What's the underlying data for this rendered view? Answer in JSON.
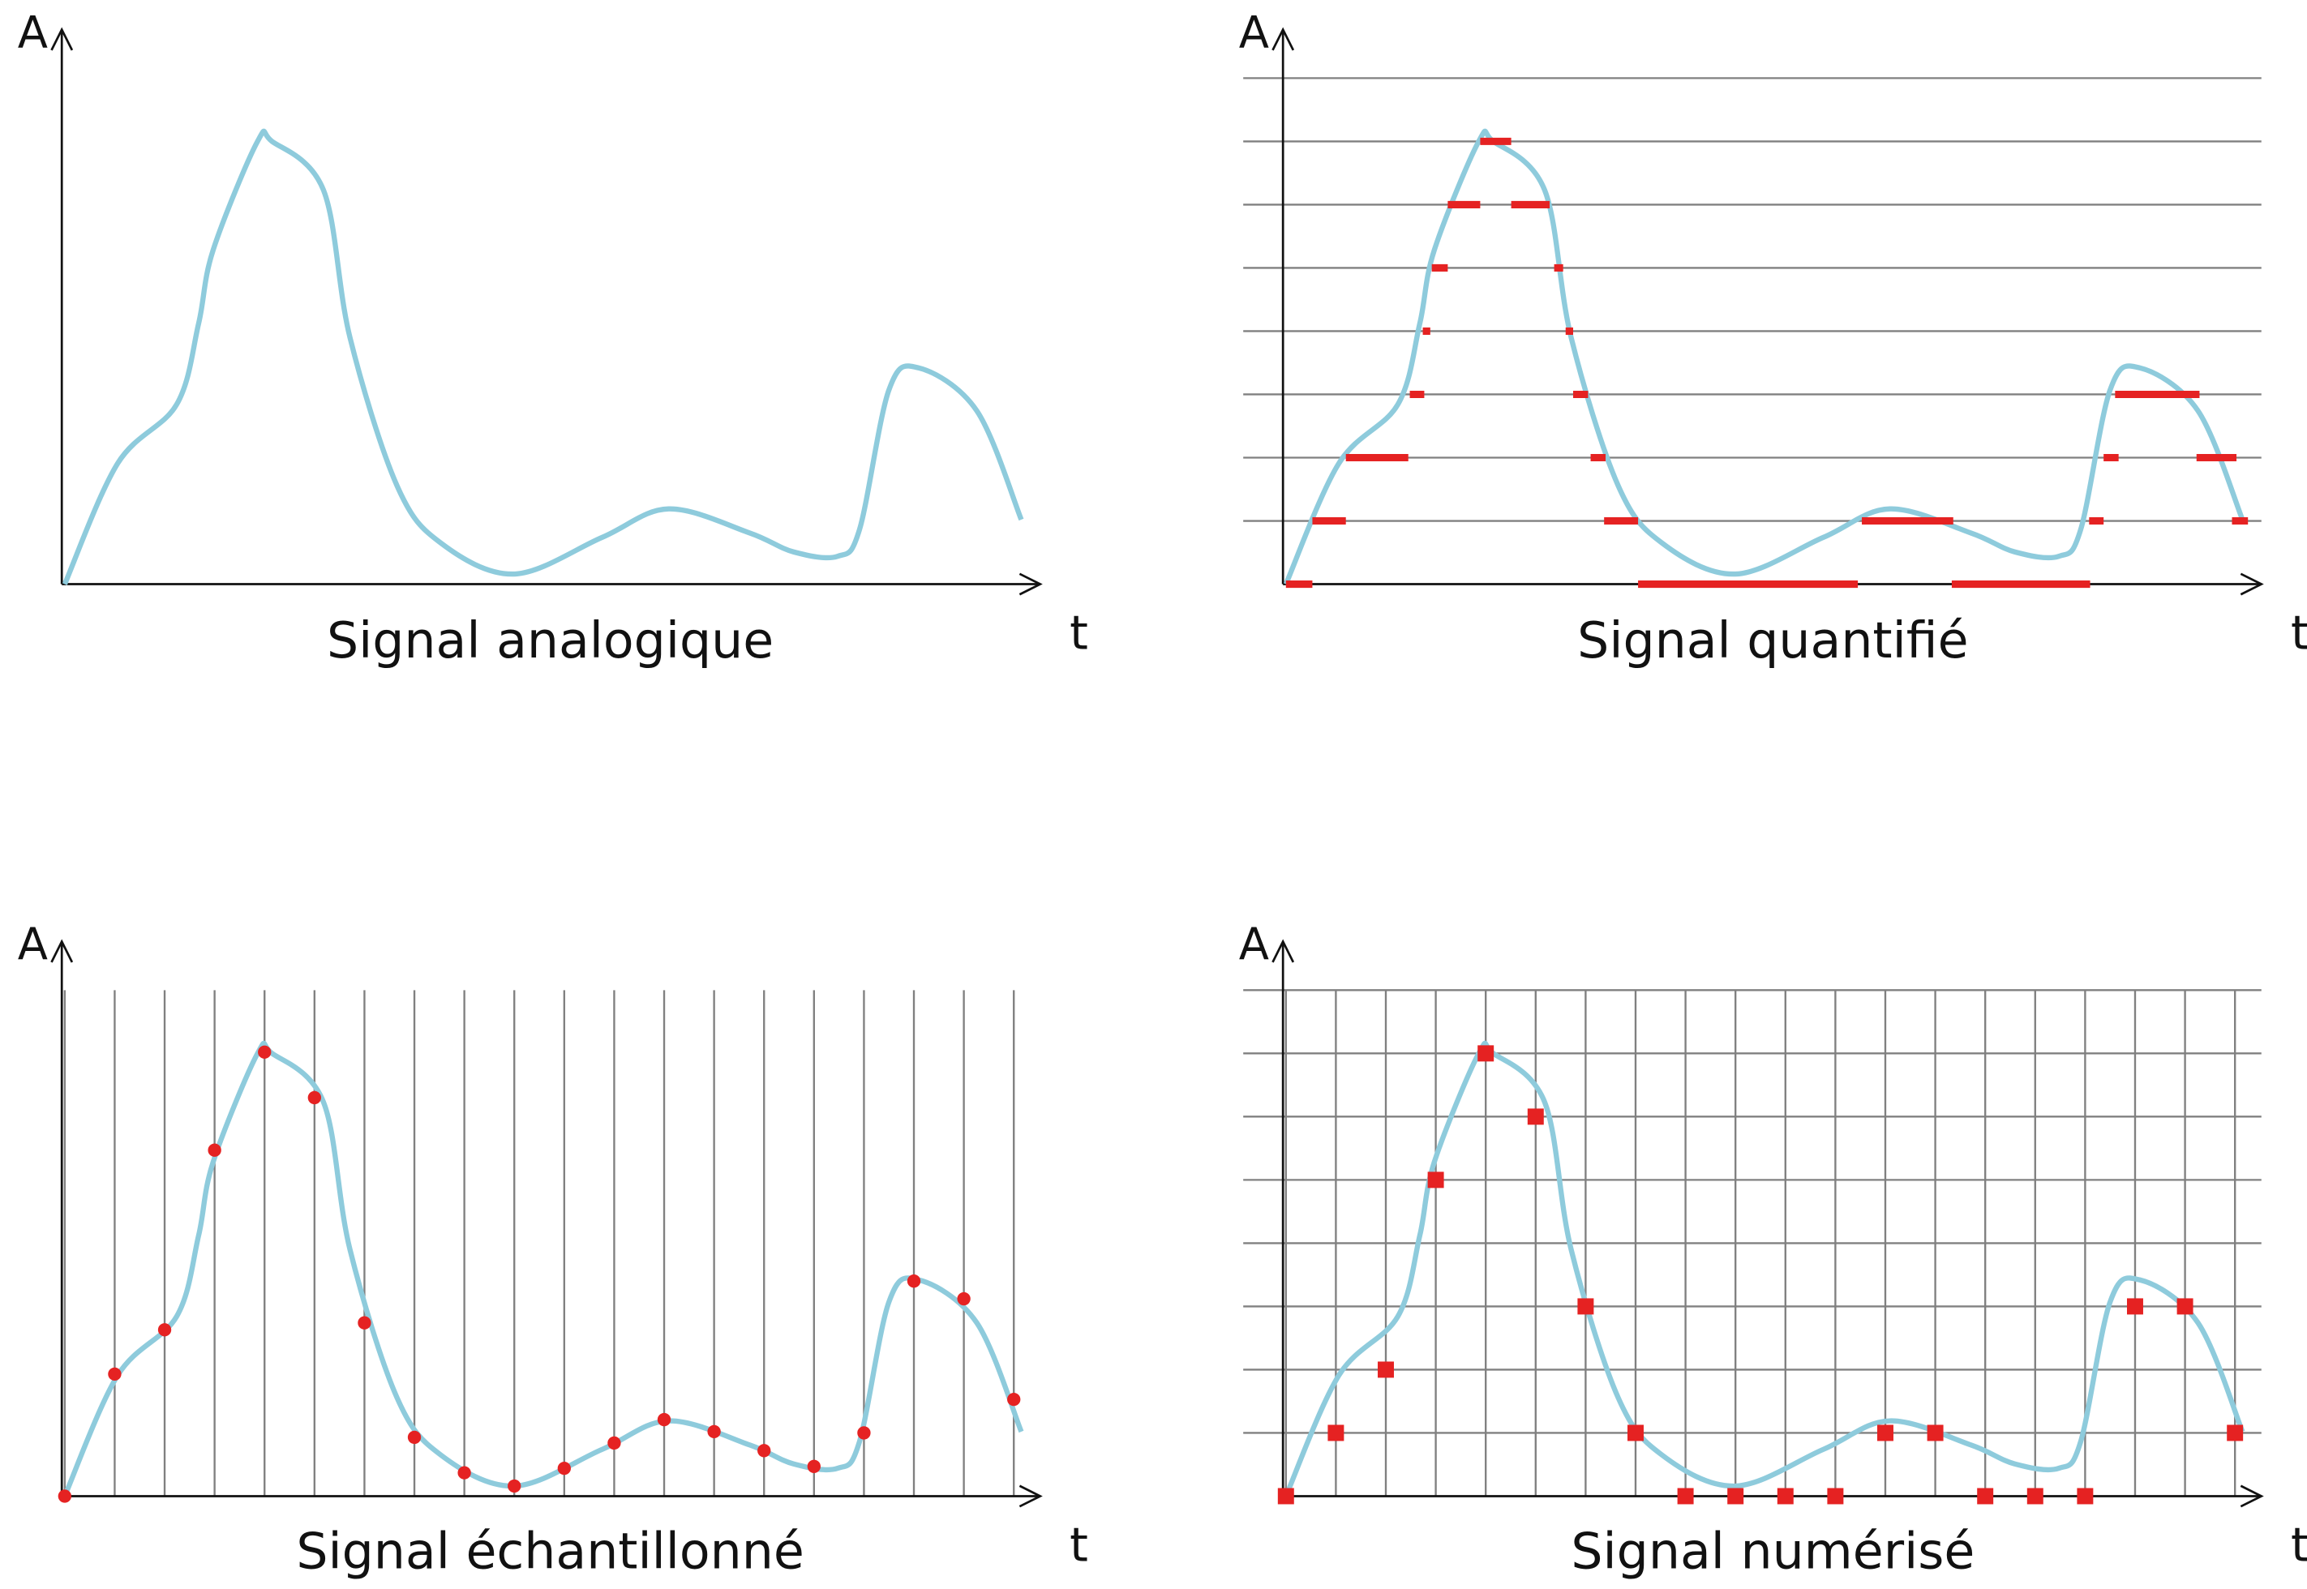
{
  "colors": {
    "signal": "#8ecbdc",
    "marker": "#e52222",
    "grid": "#808080",
    "axis": "#111111"
  },
  "axis_labels": {
    "y": "A",
    "x": "t"
  },
  "chart_data": {
    "type": "line",
    "signal_curve": [
      [
        0,
        0
      ],
      [
        1.06,
        1.91
      ],
      [
        2.24,
        2.84
      ],
      [
        2.68,
        4.12
      ],
      [
        2.97,
        5.28
      ],
      [
        3.86,
        7.0
      ],
      [
        4.15,
        7.0
      ],
      [
        5.18,
        6.23
      ],
      [
        5.71,
        3.9
      ],
      [
        6.65,
        1.56
      ],
      [
        7.53,
        0.65
      ],
      [
        9.0,
        0.16
      ],
      [
        10.76,
        0.74
      ],
      [
        12.09,
        1.19
      ],
      [
        13.71,
        0.81
      ],
      [
        14.59,
        0.51
      ],
      [
        15.47,
        0.44
      ],
      [
        15.91,
        0.86
      ],
      [
        16.5,
        3.07
      ],
      [
        17.09,
        3.42
      ],
      [
        18.26,
        2.74
      ],
      [
        19.15,
        1.02
      ]
    ],
    "samples": [
      0,
      1.93,
      2.63,
      5.47,
      7.02,
      6.3,
      2.74,
      0.93,
      0.37,
      0.16,
      0.44,
      0.84,
      1.21,
      1.02,
      0.72,
      0.47,
      1.0,
      3.4,
      3.12,
      1.53
    ],
    "digitized": [
      0,
      1,
      2,
      5,
      7,
      6,
      3,
      1,
      0,
      0,
      0,
      0,
      1,
      1,
      0,
      0,
      0,
      3,
      3,
      1
    ],
    "quantized_segments": [
      [
        0,
        0.53,
        0
      ],
      [
        7.05,
        11.45,
        0
      ],
      [
        13.33,
        16.1,
        0
      ],
      [
        0.53,
        1.2,
        1
      ],
      [
        6.37,
        7.05,
        1
      ],
      [
        11.53,
        13.36,
        1
      ],
      [
        16.08,
        16.37,
        1
      ],
      [
        18.94,
        19.26,
        1
      ],
      [
        1.2,
        2.45,
        2
      ],
      [
        6.1,
        6.4,
        2
      ],
      [
        16.37,
        16.67,
        2
      ],
      [
        18.23,
        19.03,
        2
      ],
      [
        2.48,
        2.77,
        3
      ],
      [
        5.75,
        6.05,
        3
      ],
      [
        16.6,
        18.29,
        3
      ],
      [
        2.74,
        2.89,
        4
      ],
      [
        5.6,
        5.75,
        4
      ],
      [
        2.92,
        3.24,
        5
      ],
      [
        5.37,
        5.55,
        5
      ],
      [
        3.24,
        3.89,
        6
      ],
      [
        4.51,
        5.28,
        6
      ],
      [
        3.89,
        4.51,
        7
      ]
    ],
    "levels": 8,
    "sample_count": 20,
    "panels": [
      {
        "id": "analog",
        "title": "Signal analogique"
      },
      {
        "id": "quantized",
        "title": "Signal quantifié"
      },
      {
        "id": "sampled",
        "title": "Signal échantillonné"
      },
      {
        "id": "digitized",
        "title": "Signal numérisé"
      }
    ]
  }
}
